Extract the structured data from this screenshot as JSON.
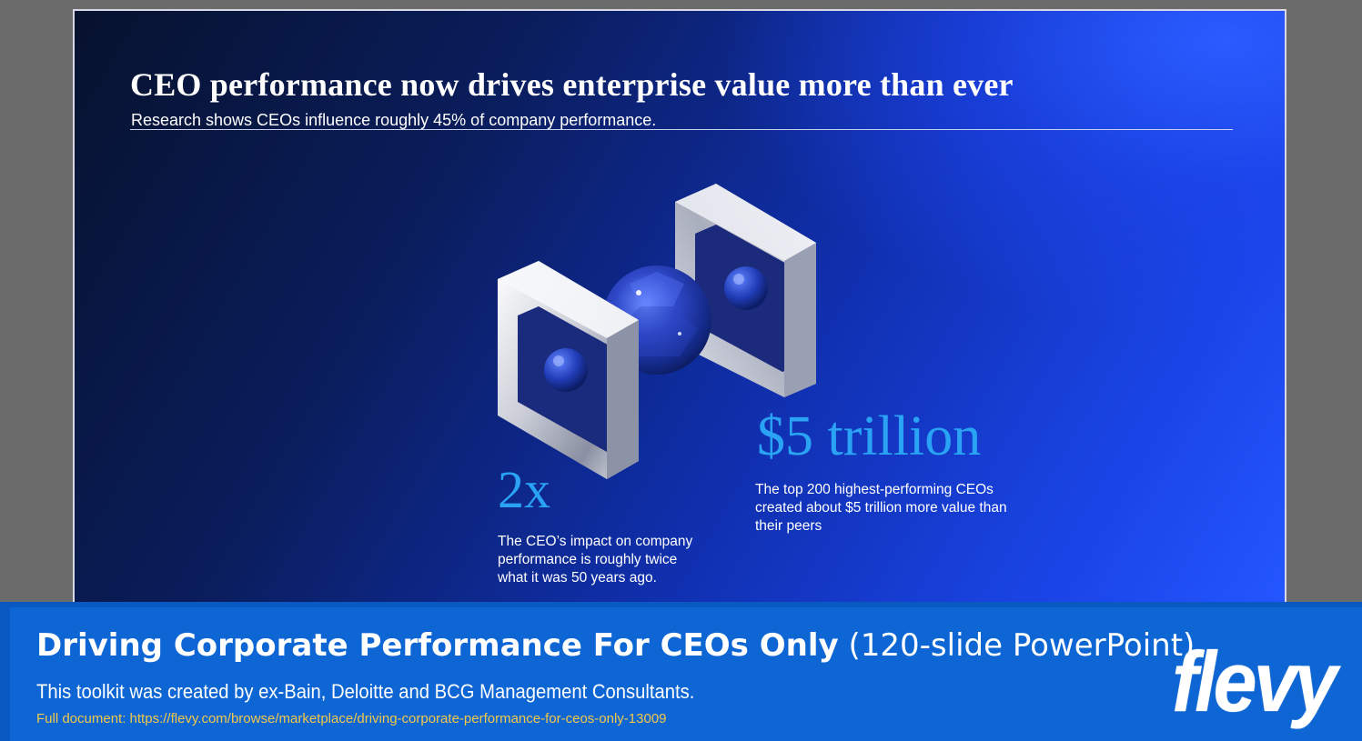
{
  "slide": {
    "title": "CEO performance now drives enterprise value more than ever",
    "subtitle": "Research shows CEOs influence roughly 45% of company performance.",
    "stats": [
      {
        "value": "2x",
        "description": "The CEO’s impact on company performance is roughly twice what it was 50 years ago."
      },
      {
        "value": "$5 trillion",
        "description": "The top 200 highest-performing CEOs created about $5 trillion more value than their peers"
      }
    ],
    "image": "silver-frames-with-blue-gems-icon"
  },
  "banner": {
    "title_bold": "Driving Corporate Performance For CEOs Only",
    "title_light": "(120-slide PowerPoint)",
    "description": "This toolkit was created by ex-Bain, Deloitte and BCG Management Consultants.",
    "link": "Full document: https://flevy.com/browse/marketplace/driving-corporate-performance-for-ceos-only-13009",
    "logo": "flevy"
  },
  "colors": {
    "slide_bg_dark": "#07122e",
    "slide_bg_bright": "#2456ff",
    "stat_accent": "#2aa3f5",
    "banner_bg": "#0d66d3",
    "link_color": "#f2c84b"
  }
}
